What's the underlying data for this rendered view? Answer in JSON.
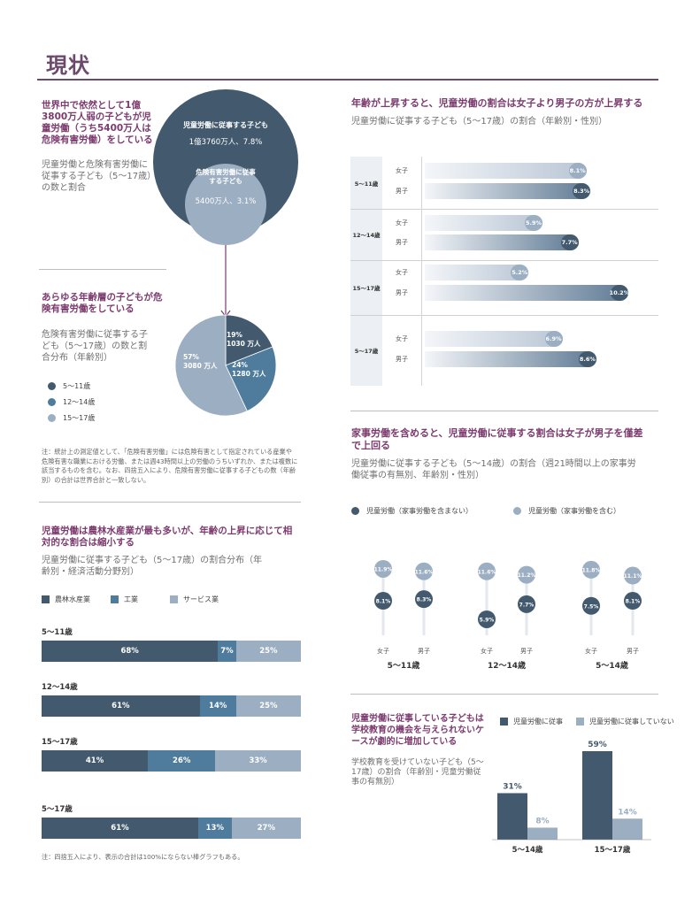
{
  "page": {
    "title": "現状"
  },
  "colors": {
    "dark": "#435a6e",
    "mid": "#4f7c9c",
    "light": "#9caec2",
    "accent": "#7c3a6e"
  },
  "circles": {
    "headline": "世界中で依然として1億3800万人弱の子どもが児童労働（うち5400万人は危険有害労働）をしている",
    "subtitle": "児童労働と危険有害労働に従事する子ども（5～17歳）の数と割合",
    "outer_label": "児童労働に従事する子ども",
    "outer_value": "1億3760万人、7.8%",
    "inner_label": "危険有害労働に従事する子ども",
    "inner_value": "5400万人、3.1%"
  },
  "pie_section": {
    "headline": "あらゆる年齢層の子どもが危険有害労働をしている",
    "subtitle": "危険有害労働に従事する子ども（5～17歳）の数と割合分布（年齢別）",
    "legend": [
      "5～11歳",
      "12～14歳",
      "15～17歳"
    ],
    "note": "注：統計上の測定値として、「危険有害労働」には危険有害として指定されている産業や危険有害な職業における労働、または週43時間以上の労働のうちいずれか、または複数に該当するものを含む。なお、四捨五入により、危険有害労働に従事する子どもの数（年齢別）の合計は世界合計と一致しない。"
  },
  "stack_section": {
    "headline": "児童労働は農林水産業が最も多いが、年齢の上昇に応じて相対的な割合は縮小する",
    "subtitle": "児童労働に従事する子ども（5～17歳）の割合分布（年齢別・経済活動分野別）",
    "legend": [
      "農林水産業",
      "工業",
      "サービス業"
    ],
    "note": "注：四捨五入により、表示の合計は100%にならない棒グラフもある。"
  },
  "hbar_section": {
    "headline": "年齢が上昇すると、児童労働の割合は女子より男子の方が上昇する",
    "subtitle": "児童労働に従事する子ども（5～17歳）の割合（年齢別・性別）"
  },
  "lolli_section": {
    "headline": "家事労働を含めると、児童労働に従事する割合は女子が男子を僅差で上回る",
    "subtitle": "児童労働に従事する子ども（5～14歳）の割合（週21時間以上の家事労働従事の有無別、年齢別・性別）",
    "legend": [
      "児童労働（家事労働を含まない）",
      "児童労働（家事労働を含む）"
    ]
  },
  "edu_section": {
    "headline": "児童労働に従事している子どもは学校教育の機会を与えられないケースが劇的に増加している",
    "subtitle": "学校教育を受けていない子ども（5～17歳）の割合（年齢別・児童労働従事の有無別）",
    "legend": [
      "児童労働に従事",
      "児童労働に従事していない"
    ]
  },
  "chart_data": [
    {
      "type": "pie",
      "categories": [
        "5～11歳",
        "12～14歳",
        "15～17歳"
      ],
      "values": [
        19,
        24,
        57
      ],
      "labels": [
        "19%\n1030 万人",
        "24%\n1280 万人",
        "57%\n3080 万人"
      ]
    },
    {
      "type": "bar",
      "orientation": "horizontal-stacked",
      "categories": [
        "5～11歳",
        "12～14歳",
        "15～17歳",
        "5～17歳"
      ],
      "series": [
        {
          "name": "農林水産業",
          "values": [
            68,
            61,
            41,
            61
          ]
        },
        {
          "name": "工業",
          "values": [
            7,
            14,
            26,
            13
          ]
        },
        {
          "name": "サービス業",
          "values": [
            25,
            25,
            33,
            27
          ]
        }
      ]
    },
    {
      "type": "bar",
      "orientation": "horizontal",
      "groups": [
        "5～11歳",
        "12～14歳",
        "15～17歳",
        "5～17歳"
      ],
      "row_labels": [
        "女子",
        "男子"
      ],
      "values": [
        [
          8.1,
          8.3
        ],
        [
          5.9,
          7.7
        ],
        [
          5.2,
          10.2
        ],
        [
          6.9,
          8.6
        ]
      ],
      "labels": [
        [
          "8.1%",
          "8.3%"
        ],
        [
          "5.9%",
          "7.7%"
        ],
        [
          "5.2%",
          "10.2%"
        ],
        [
          "6.9%",
          "8.6%"
        ]
      ]
    },
    {
      "type": "scatter",
      "groups": [
        "5～11歳",
        "12～14歳",
        "5～14歳"
      ],
      "x_labels": [
        "女子",
        "男子"
      ],
      "series": [
        {
          "name": "児童労働（家事労働を含まない）",
          "values": [
            8.1,
            8.3,
            5.9,
            7.7,
            7.5,
            8.1
          ],
          "labels": [
            "8.1%",
            "8.3%",
            "5.9%",
            "7.7%",
            "7.5%",
            "8.1%"
          ]
        },
        {
          "name": "児童労働（家事労働を含む）",
          "values": [
            11.9,
            11.6,
            11.6,
            11.2,
            11.8,
            11.1
          ],
          "labels": [
            "11.9%",
            "11.6%",
            "11.6%",
            "11.2%",
            "11.8%",
            "11.1%"
          ]
        }
      ]
    },
    {
      "type": "bar",
      "categories": [
        "5～14歳",
        "15～17歳"
      ],
      "series": [
        {
          "name": "児童労働に従事",
          "values": [
            31,
            59
          ],
          "labels": [
            "31%",
            "59%"
          ]
        },
        {
          "name": "児童労働に従事していない",
          "values": [
            8,
            14
          ],
          "labels": [
            "8%",
            "14%"
          ]
        }
      ]
    }
  ]
}
